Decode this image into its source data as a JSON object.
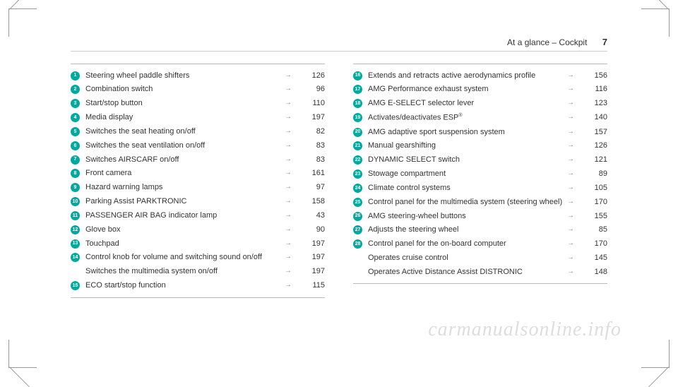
{
  "header": {
    "title": "At a glance – Cockpit",
    "page_number": "7"
  },
  "arrow_glyph": "→",
  "watermark": "carmanualsonline.info",
  "left_column": [
    {
      "n": "1",
      "label": "Steering wheel paddle shifters",
      "page": "126"
    },
    {
      "n": "2",
      "label": "Combination switch",
      "page": "96"
    },
    {
      "n": "3",
      "label": "Start/stop button",
      "page": "110"
    },
    {
      "n": "4",
      "label": "Media display",
      "page": "197"
    },
    {
      "n": "5",
      "label": "Switches the seat heating on/off",
      "page": "82"
    },
    {
      "n": "6",
      "label": "Switches the seat ventilation on/off",
      "page": "83"
    },
    {
      "n": "7",
      "label": "Switches AIRSCARF on/off",
      "page": "83"
    },
    {
      "n": "8",
      "label": "Front camera",
      "page": "161"
    },
    {
      "n": "9",
      "label": "Hazard warning lamps",
      "page": "97"
    },
    {
      "n": "10",
      "label": "Parking Assist PARKTRONIC",
      "page": "158"
    },
    {
      "n": "11",
      "label": "PASSENGER AIR BAG indicator lamp",
      "page": "43"
    },
    {
      "n": "12",
      "label": "Glove box",
      "page": "90"
    },
    {
      "n": "13",
      "label": "Touchpad",
      "page": "197"
    },
    {
      "n": "14",
      "label": "Control knob for volume and switching sound on/off",
      "page": "197"
    },
    {
      "n": "",
      "label": "Switches the multimedia system on/off",
      "page": "197"
    },
    {
      "n": "15",
      "label": "ECO start/stop function",
      "page": "115"
    }
  ],
  "right_column": [
    {
      "n": "16",
      "label": "Extends and retracts active aerodynamics profile",
      "page": "156"
    },
    {
      "n": "17",
      "label": "AMG Performance exhaust system",
      "page": "116"
    },
    {
      "n": "18",
      "label": "AMG E-SELECT selector lever",
      "page": "123"
    },
    {
      "n": "19",
      "label": "Activates/deactivates ESP",
      "sup": "®",
      "page": "140"
    },
    {
      "n": "20",
      "label": "AMG adaptive sport suspension system",
      "page": "157"
    },
    {
      "n": "21",
      "label": "Manual gearshifting",
      "page": "126"
    },
    {
      "n": "22",
      "label": "DYNAMIC SELECT switch",
      "page": "121"
    },
    {
      "n": "23",
      "label": "Stowage compartment",
      "page": "89"
    },
    {
      "n": "24",
      "label": "Climate control systems",
      "page": "105"
    },
    {
      "n": "25",
      "label": "Control panel for the multimedia system (steering wheel)",
      "page": "170"
    },
    {
      "n": "26",
      "label": "AMG steering-wheel buttons",
      "page": "155"
    },
    {
      "n": "27",
      "label": "Adjusts the steering wheel",
      "page": "85"
    },
    {
      "n": "28",
      "label": "Control panel for the on-board computer",
      "page": "170"
    },
    {
      "n": "",
      "label": "Operates cruise control",
      "page": "145"
    },
    {
      "n": "",
      "label": "Operates Active Distance Assist DISTRONIC",
      "page": "148"
    }
  ]
}
